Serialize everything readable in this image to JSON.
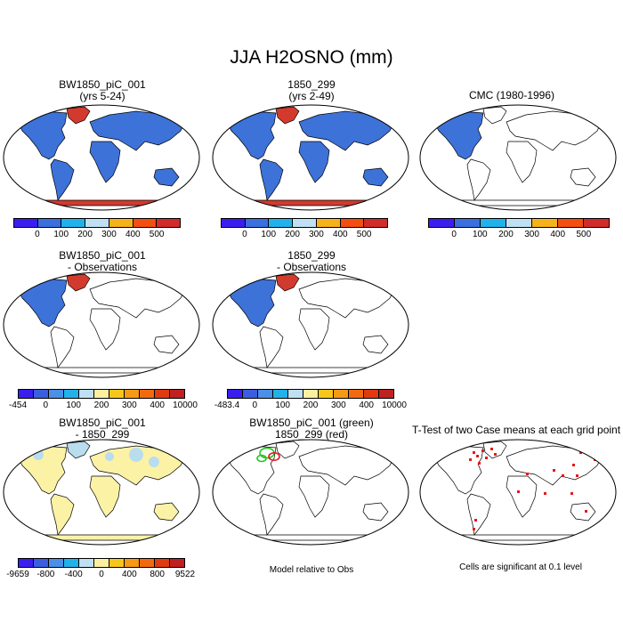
{
  "figure": {
    "title": "JJA H2OSNO (mm)"
  },
  "panels": [
    {
      "id": "p1",
      "title": "BW1850_piC_001\n(yrs 5-24)",
      "fill": "blue-nh-red-ant"
    },
    {
      "id": "p2",
      "title": "1850_299\n(yrs 2-49)",
      "fill": "blue-nh-red-ant"
    },
    {
      "id": "p3",
      "title": "CMC (1980-1996)",
      "fill": "na-only"
    },
    {
      "id": "p4",
      "title": "BW1850_piC_001\n- Observations",
      "fill": "na-diff"
    },
    {
      "id": "p5",
      "title": "1850_299\n- Observations",
      "fill": "na-diff"
    },
    {
      "id": "p7",
      "title": "BW1850_piC_001\n- 1850_299",
      "fill": "yellow-land"
    },
    {
      "id": "p8",
      "title": "BW1850_piC_001 (green)\n1850_299 (red)",
      "fill": "green-red-contour"
    },
    {
      "id": "p9",
      "title": "T-Test of two Case means at each grid point",
      "fill": "red-dots"
    }
  ],
  "colorbars": [
    {
      "id": "cb1",
      "colors": [
        "#3a1ef0",
        "#3b6fe0",
        "#22b2ea",
        "#bfe0f2",
        "#f6b21b",
        "#f24f10",
        "#d02c2c"
      ],
      "labels": [
        "0",
        "100",
        "200",
        "300",
        "400",
        "500"
      ]
    },
    {
      "id": "cb2",
      "colors": [
        "#3a1ef0",
        "#3b6fe0",
        "#22b2ea",
        "#bfe0f2",
        "#f6b21b",
        "#f24f10",
        "#d02c2c"
      ],
      "labels": [
        "0",
        "100",
        "200",
        "300",
        "400",
        "500"
      ]
    },
    {
      "id": "cb3",
      "colors": [
        "#3a1ef0",
        "#3b6fe0",
        "#22b2ea",
        "#bfe0f2",
        "#f6b21b",
        "#f24f10",
        "#d02c2c"
      ],
      "labels": [
        "0",
        "100",
        "200",
        "300",
        "400",
        "500"
      ]
    },
    {
      "id": "cb4",
      "colors": [
        "#3a1ef0",
        "#3b5ee0",
        "#4a8fe8",
        "#22b2ea",
        "#bfe0f2",
        "#fbf0a0",
        "#f6c71b",
        "#f69a15",
        "#f26a10",
        "#e03a10",
        "#c02020"
      ],
      "labels": [
        "-454",
        "0",
        "100",
        "200",
        "300",
        "400",
        "10000"
      ]
    },
    {
      "id": "cb5",
      "colors": [
        "#3a1ef0",
        "#3b5ee0",
        "#4a8fe8",
        "#22b2ea",
        "#bfe0f2",
        "#fbf0a0",
        "#f6c71b",
        "#f69a15",
        "#f26a10",
        "#e03a10",
        "#c02020"
      ],
      "labels": [
        "-483.4",
        "0",
        "100",
        "200",
        "300",
        "400",
        "10000"
      ]
    },
    {
      "id": "cb7",
      "colors": [
        "#3a1ef0",
        "#3b5ee0",
        "#4a8fe8",
        "#22b2ea",
        "#bfe0f2",
        "#fbf0a0",
        "#f6c71b",
        "#f69a15",
        "#f26a10",
        "#e03a10",
        "#c02020"
      ],
      "labels": [
        "-9659",
        "-800",
        "-400",
        "0",
        "400",
        "800",
        "9522"
      ]
    }
  ],
  "notes": {
    "model_relative": "Model relative to Obs",
    "significance": "Cells are significant at 0.1 level"
  },
  "colors": {
    "snow_blue": "#3d72d9",
    "antarctic_red": "#d33a2e",
    "diff_yellow": "#fbf2a6",
    "diff_lightblue": "#b9dcef",
    "green_contour": "#22c622",
    "sig_red": "#e81818"
  }
}
